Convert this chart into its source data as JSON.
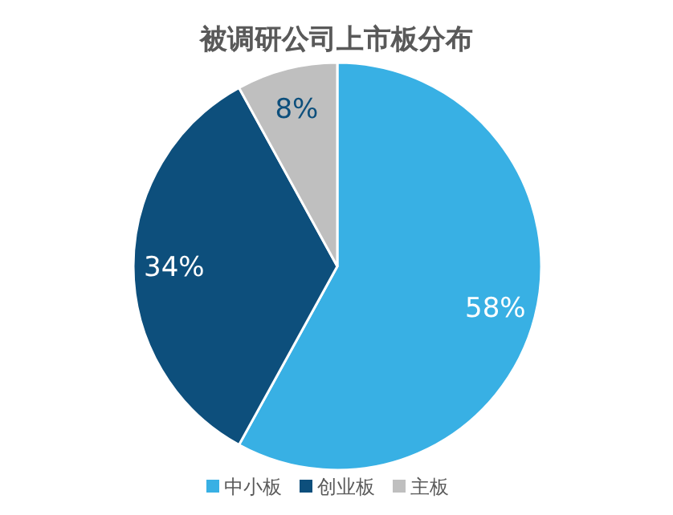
{
  "chart_data": {
    "type": "pie",
    "title": "被调研公司上市板分布",
    "categories": [
      "中小板",
      "创业板",
      "主板"
    ],
    "values": [
      58,
      34,
      8
    ],
    "value_labels": [
      "58%",
      "34%",
      "8%"
    ],
    "colors": [
      "#38b0e4",
      "#0d4f7c",
      "#bfbfbf"
    ],
    "legend": "bottom"
  }
}
